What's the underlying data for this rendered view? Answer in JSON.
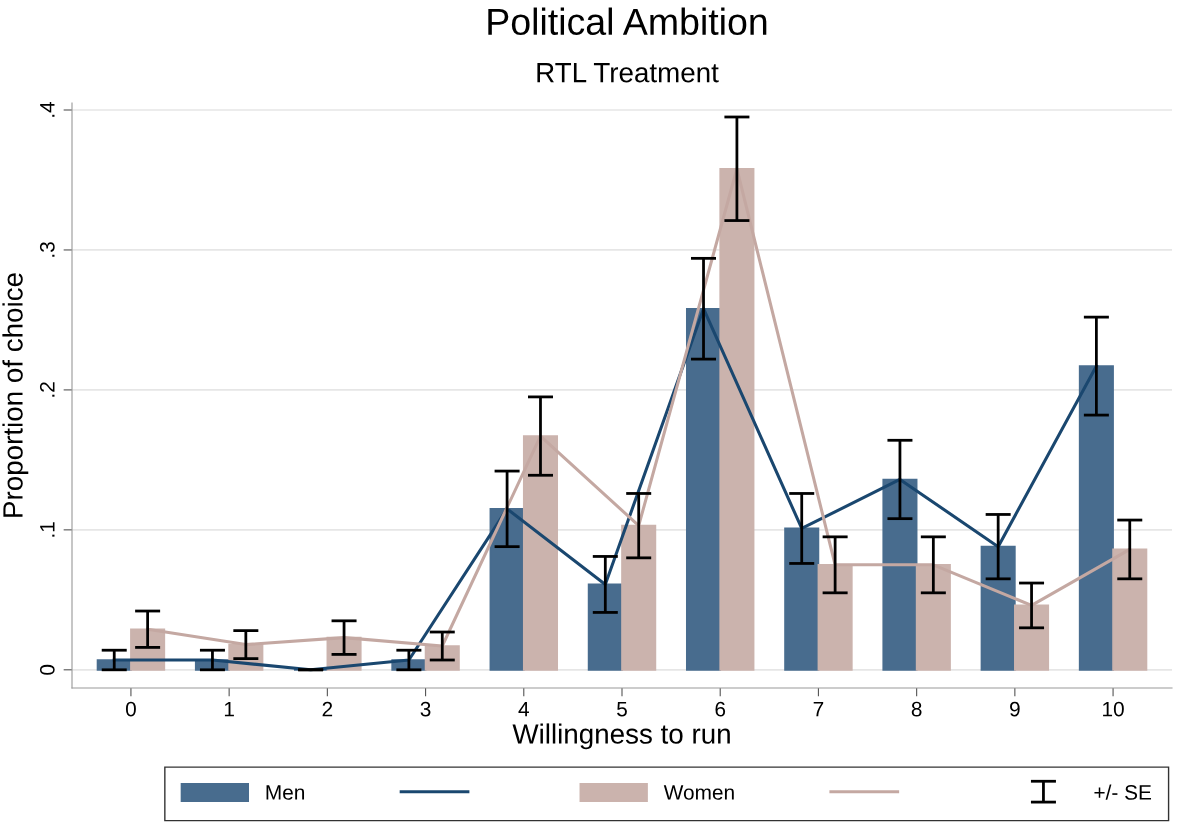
{
  "chart_data": {
    "type": "bar",
    "title": "Political Ambition",
    "subtitle": "RTL Treatment",
    "xlabel": "Willingness to run",
    "ylabel": "Proportion of choice",
    "categories": [
      "0",
      "1",
      "2",
      "3",
      "4",
      "5",
      "6",
      "7",
      "8",
      "9",
      "10"
    ],
    "series": [
      {
        "name": "Men",
        "color": "#486c8e",
        "values": [
          0.007,
          0.007,
          0,
          0.007,
          0.115,
          0.061,
          0.258,
          0.101,
          0.136,
          0.088,
          0.217
        ],
        "errors": [
          0.007,
          0.007,
          0,
          0.007,
          0.027,
          0.02,
          0.036,
          0.025,
          0.028,
          0.023,
          0.035
        ]
      },
      {
        "type": "line",
        "color": "#1a476f",
        "values": [
          0.007,
          0.007,
          0,
          0.007,
          0.115,
          0.061,
          0.258,
          0.101,
          0.136,
          0.088,
          0.217
        ]
      },
      {
        "name": "Women",
        "color": "#cbb3ad",
        "values": [
          0.029,
          0.018,
          0.023,
          0.017,
          0.167,
          0.103,
          0.358,
          0.075,
          0.075,
          0.046,
          0.086
        ],
        "errors": [
          0.013,
          0.01,
          0.012,
          0.01,
          0.028,
          0.023,
          0.037,
          0.02,
          0.02,
          0.016,
          0.021
        ]
      },
      {
        "type": "line",
        "color": "#c4a8a2",
        "values": [
          0.029,
          0.018,
          0.023,
          0.017,
          0.167,
          0.103,
          0.358,
          0.075,
          0.075,
          0.046,
          0.086
        ]
      }
    ],
    "ylim": [
      -0.013,
      0.405
    ],
    "yticks": [
      0,
      {
        "value": 0.1,
        "label": ".1"
      },
      {
        "value": 0.2,
        "label": ".2"
      },
      {
        "value": 0.3,
        "label": ".3"
      },
      {
        "value": 0.4,
        "label": ".4"
      }
    ],
    "grid": "y",
    "legend": "bottom",
    "annotations": [
      "+/- SE"
    ]
  }
}
